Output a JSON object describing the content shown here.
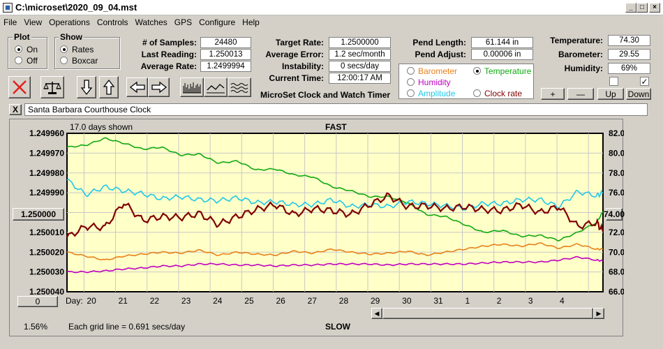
{
  "window": {
    "title": "C:\\microset\\2020_09_04.mst"
  },
  "menu": [
    "File",
    "View",
    "Operations",
    "Controls",
    "Watches",
    "GPS",
    "Configure",
    "Help"
  ],
  "plot_group": {
    "title": "Plot",
    "on": "On",
    "off": "Off",
    "selected": "On"
  },
  "show_group": {
    "title": "Show",
    "rates": "Rates",
    "boxcar": "Boxcar",
    "selected": "Rates"
  },
  "stats": {
    "samples_label": "# of Samples:",
    "samples": "24480",
    "last_label": "Last Reading:",
    "last": "1.250013",
    "avg_rate_label": "Average Rate:",
    "avg_rate": "1.2499994",
    "target_label": "Target Rate:",
    "target": "1.2500000",
    "avg_error_label": "Average Error:",
    "avg_error": "1.2 sec/month",
    "instability_label": "Instability:",
    "instability": "0 secs/day",
    "time_label": "Current Time:",
    "time": "12:00:17 AM",
    "pend_length_label": "Pend Length:",
    "pend_length": "61.144 in",
    "pend_adjust_label": "Pend Adjust:",
    "pend_adjust": "0.00006 in",
    "temp_label": "Temperature:",
    "temp": "74.30",
    "baro_label": "Barometer:",
    "baro": "29.55",
    "humidity_label": "Humidity:",
    "humidity": "69%"
  },
  "center_title": "MicroSet Clock and Watch Timer",
  "sensor_select": {
    "barometer": "Barometer",
    "temperature": "Temperature",
    "humidity": "Humidity",
    "amplitude": "Amplitude",
    "clock_rate": "Clock rate",
    "selected": "Temperature",
    "colors": {
      "barometer": "#e8801a",
      "temperature": "#10a810",
      "humidity": "#c000c0",
      "amplitude": "#20c8e8",
      "clock_rate": "#800000"
    }
  },
  "adjust_buttons": {
    "plus": "+",
    "minus": "—",
    "up": "Up",
    "down": "Down"
  },
  "checkboxes": [
    {
      "checked": false
    },
    {
      "checked": true
    }
  ],
  "watch": {
    "close": "X",
    "name": "Santa Barbara Courthouse Clock"
  },
  "chart_data": {
    "type": "line",
    "top_label": "FAST",
    "bottom_label": "SLOW",
    "days_shown": "17.0 days shown",
    "grid_note": "Each grid line = 0.691 secs/day",
    "left_axis_ticks": [
      "1.249960",
      "1.249970",
      "1.249980",
      "1.249990",
      "1.250000",
      "1.250010",
      "1.250020",
      "1.250030",
      "1.250040"
    ],
    "right_axis_ticks": [
      "82.00",
      "80.00",
      "78.00",
      "76.00",
      "74.00",
      "72.00",
      "70.00",
      "68.00",
      "66.00"
    ],
    "left_highlight": "1.250000",
    "right_highlight": "74.00",
    "left_small_value": "0",
    "percent": "1.56%",
    "x_axis_label": "Day:",
    "x_ticks": [
      "20",
      "21",
      "22",
      "23",
      "24",
      "25",
      "26",
      "27",
      "28",
      "29",
      "30",
      "31",
      "1",
      "2",
      "3",
      "4"
    ],
    "left_range": [
      1.24996,
      1.25004
    ],
    "right_range": [
      66,
      82
    ],
    "series": [
      {
        "name": "Temperature",
        "color": "#10a810",
        "x": [
          0,
          0.6,
          1.2,
          1.8,
          2.4,
          3.0,
          3.6,
          4.2,
          4.8,
          5.4,
          6.0,
          6.6,
          7.2,
          7.8,
          8.4,
          9.0,
          9.6,
          10.2,
          10.8,
          11.4,
          12.0,
          12.6,
          13.2,
          13.8,
          14.4,
          15.0,
          15.6,
          16.2,
          16.8,
          17.0
        ],
        "values": [
          80.6,
          80.8,
          81.5,
          81.0,
          80.4,
          80.6,
          79.8,
          79.9,
          79.0,
          79.2,
          78.3,
          78.4,
          77.8,
          77.6,
          76.6,
          76.2,
          75.6,
          75.6,
          75.0,
          73.8,
          73.6,
          72.8,
          72.0,
          72.2,
          71.6,
          71.7,
          71.2,
          72.0,
          73.0,
          74.1
        ]
      },
      {
        "name": "Amplitude",
        "color": "#20c8e8",
        "x": [
          0,
          0.6,
          1.2,
          1.8,
          2.4,
          3.0,
          3.6,
          4.2,
          4.8,
          5.4,
          6.0,
          6.6,
          7.2,
          7.8,
          8.4,
          9.0,
          9.6,
          10.2,
          10.8,
          11.4,
          12.0,
          12.6,
          13.2,
          13.8,
          14.4,
          15.0,
          15.6,
          16.2,
          16.8,
          17.0
        ],
        "values": [
          77.3,
          75.8,
          76.6,
          76.2,
          75.9,
          75.4,
          75.6,
          75.3,
          75.2,
          75.5,
          75.0,
          75.1,
          74.8,
          74.8,
          75.3,
          74.6,
          74.8,
          74.6,
          75.1,
          74.9,
          74.7,
          74.4,
          74.9,
          74.9,
          75.3,
          75.3,
          74.6,
          76.1,
          75.7,
          76.0
        ]
      },
      {
        "name": "Clock rate",
        "color": "#800000",
        "x": [
          0,
          0.6,
          1.2,
          1.8,
          2.4,
          3.0,
          3.6,
          4.2,
          4.8,
          5.4,
          6.0,
          6.6,
          7.2,
          7.8,
          8.4,
          9.0,
          9.6,
          10.2,
          10.8,
          11.4,
          12.0,
          12.6,
          13.2,
          13.8,
          14.4,
          15.0,
          15.6,
          16.2,
          16.8,
          17.0
        ],
        "values": [
          71.5,
          72.6,
          72.5,
          75.0,
          73.2,
          73.6,
          73.5,
          73.9,
          72.8,
          73.6,
          74.3,
          74.8,
          73.8,
          74.4,
          74.2,
          73.8,
          74.8,
          75.7,
          74.6,
          74.7,
          74.4,
          74.6,
          74.3,
          74.2,
          74.8,
          74.0,
          74.6,
          72.6,
          73.0,
          72.1
        ]
      },
      {
        "name": "Barometer",
        "color": "#e8801a",
        "x": [
          0,
          0.6,
          1.2,
          1.8,
          2.4,
          3.0,
          3.6,
          4.2,
          4.8,
          5.4,
          6.0,
          6.6,
          7.2,
          7.8,
          8.4,
          9.0,
          9.6,
          10.2,
          10.8,
          11.4,
          12.0,
          12.6,
          13.2,
          13.8,
          14.4,
          15.0,
          15.6,
          16.2,
          16.8,
          17.0
        ],
        "values": [
          70.0,
          69.6,
          69.2,
          69.6,
          69.8,
          70.0,
          69.9,
          70.2,
          69.7,
          70.0,
          69.8,
          69.7,
          70.1,
          69.9,
          70.3,
          70.0,
          69.8,
          69.9,
          70.1,
          69.7,
          70.0,
          70.3,
          70.6,
          70.8,
          70.6,
          70.9,
          70.4,
          70.8,
          70.3,
          70.3
        ]
      },
      {
        "name": "Humidity",
        "color": "#c000c0",
        "x": [
          0,
          0.6,
          1.2,
          1.8,
          2.4,
          3.0,
          3.6,
          4.2,
          4.8,
          5.4,
          6.0,
          6.6,
          7.2,
          7.8,
          8.4,
          9.0,
          9.6,
          10.2,
          10.8,
          11.4,
          12.0,
          12.6,
          13.2,
          13.8,
          14.4,
          15.0,
          15.6,
          16.2,
          16.8,
          17.0
        ],
        "values": [
          68.0,
          68.0,
          68.1,
          68.3,
          68.4,
          68.6,
          68.6,
          68.8,
          68.8,
          68.7,
          68.7,
          68.6,
          68.7,
          68.7,
          68.8,
          68.8,
          68.8,
          68.7,
          68.8,
          68.8,
          68.8,
          68.8,
          68.9,
          69.0,
          69.0,
          69.0,
          69.2,
          69.5,
          69.2,
          69.1
        ]
      }
    ]
  }
}
